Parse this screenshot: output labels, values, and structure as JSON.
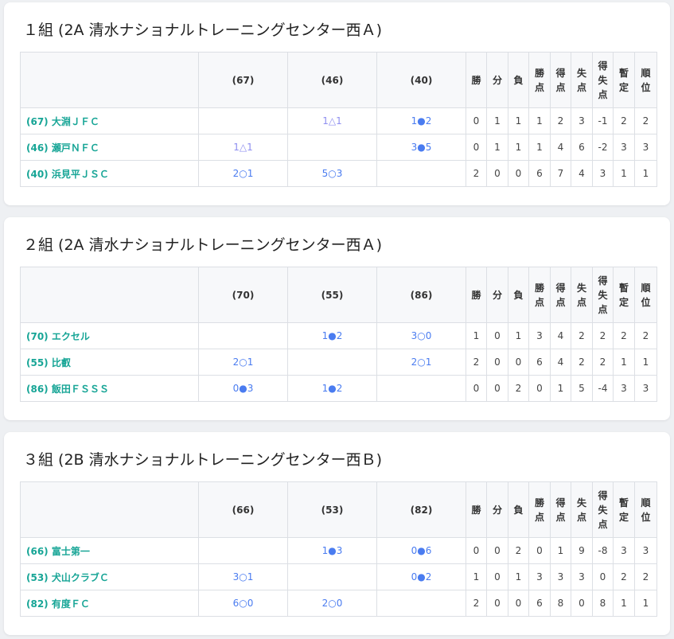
{
  "headers": [
    "勝",
    "分",
    "負",
    "勝点",
    "得点",
    "失点",
    "得失点",
    "暫定",
    "順位"
  ],
  "colors": {
    "team": "#17a596",
    "result": "#4a7cf0",
    "draw": "#8f8ff0"
  },
  "groups": [
    {
      "title": "１組 (2A 清水ナショナルトレーニングセンター西Ａ)",
      "cols": [
        "(67)",
        "(46)",
        "(40)"
      ],
      "rows": [
        {
          "name": "(67) 大淵ＪＦＣ",
          "results": [
            "",
            "1△1",
            "1●2"
          ],
          "stats": [
            "0",
            "1",
            "1",
            "1",
            "2",
            "3",
            "-1",
            "2",
            "2"
          ]
        },
        {
          "name": "(46) 瀬戸ＮＦＣ",
          "results": [
            "1△1",
            "",
            "3●5"
          ],
          "stats": [
            "0",
            "1",
            "1",
            "1",
            "4",
            "6",
            "-2",
            "3",
            "3"
          ]
        },
        {
          "name": "(40) 浜見平ＪＳＣ",
          "results": [
            "2○1",
            "5○3",
            ""
          ],
          "stats": [
            "2",
            "0",
            "0",
            "6",
            "7",
            "4",
            "3",
            "1",
            "1"
          ]
        }
      ]
    },
    {
      "title": "２組 (2A 清水ナショナルトレーニングセンター西Ａ)",
      "cols": [
        "(70)",
        "(55)",
        "(86)"
      ],
      "rows": [
        {
          "name": "(70) エクセル",
          "results": [
            "",
            "1●2",
            "3○0"
          ],
          "stats": [
            "1",
            "0",
            "1",
            "3",
            "4",
            "2",
            "2",
            "2",
            "2"
          ]
        },
        {
          "name": "(55) 比叡",
          "results": [
            "2○1",
            "",
            "2○1"
          ],
          "stats": [
            "2",
            "0",
            "0",
            "6",
            "4",
            "2",
            "2",
            "1",
            "1"
          ]
        },
        {
          "name": "(86) 飯田ＦＳＳＳ",
          "results": [
            "0●3",
            "1●2",
            ""
          ],
          "stats": [
            "0",
            "0",
            "2",
            "0",
            "1",
            "5",
            "-4",
            "3",
            "3"
          ]
        }
      ]
    },
    {
      "title": "３組 (2B 清水ナショナルトレーニングセンター西Ｂ)",
      "cols": [
        "(66)",
        "(53)",
        "(82)"
      ],
      "rows": [
        {
          "name": "(66) 富士第一",
          "results": [
            "",
            "1●3",
            "0●6"
          ],
          "stats": [
            "0",
            "0",
            "2",
            "0",
            "1",
            "9",
            "-8",
            "3",
            "3"
          ]
        },
        {
          "name": "(53) 犬山クラブＣ",
          "results": [
            "3○1",
            "",
            "0●2"
          ],
          "stats": [
            "1",
            "0",
            "1",
            "3",
            "3",
            "3",
            "0",
            "2",
            "2"
          ]
        },
        {
          "name": "(82) 有度ＦＣ",
          "results": [
            "6○0",
            "2○0",
            ""
          ],
          "stats": [
            "2",
            "0",
            "0",
            "6",
            "8",
            "0",
            "8",
            "1",
            "1"
          ]
        }
      ]
    }
  ]
}
